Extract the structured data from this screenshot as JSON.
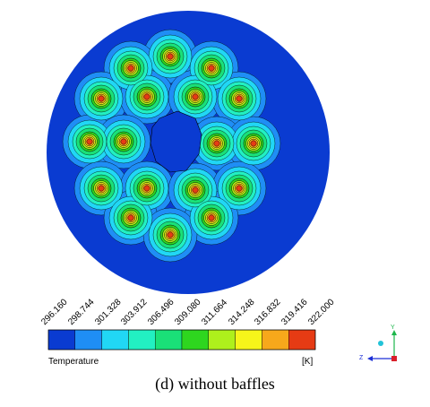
{
  "legend": {
    "title": "Temperature",
    "unit": "[K]",
    "ticks": [
      "296.160",
      "298.744",
      "301.328",
      "303.912",
      "306.496",
      "309.080",
      "311.664",
      "314.248",
      "316.832",
      "319.416",
      "322.000"
    ],
    "colors": [
      "#0a3bd1",
      "#1f8ef5",
      "#21d7f5",
      "#22f0c2",
      "#1ae078",
      "#2ed61f",
      "#aef01c",
      "#f6f51a",
      "#f7a81b",
      "#e63b14"
    ]
  },
  "contour": {
    "background_color": "#0a3bd1",
    "hole_color": "#0a3bd1",
    "tube_count": 19
  },
  "axes": {
    "y": "Y",
    "z": "Z",
    "x_color": "#d9202b",
    "y_color": "#1db64b",
    "z_color": "#1c2fd6"
  },
  "caption": "(d) without baffles"
}
